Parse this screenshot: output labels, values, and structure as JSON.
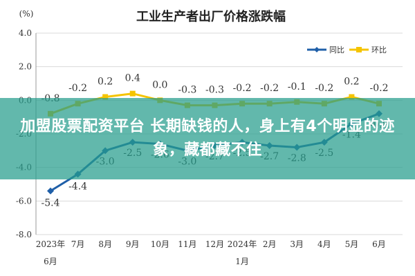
{
  "colors": {
    "yoy": "#1f5fa8",
    "mom": "#f5c400",
    "grid": "#d9d9d9",
    "banner": "#269c8c"
  },
  "banner": {
    "text": "加盟股票配资平台 长期缺钱的人，身上有4个明显的迹象，藏都藏不住"
  },
  "chart_data": {
    "type": "line",
    "title": "工业生产者出厂价格涨跌幅",
    "ylabel": "(%)",
    "xlabel": "",
    "ylim": [
      -8.0,
      4.0
    ],
    "yticks": [
      "4.0",
      "2.0",
      "0.0",
      "-2.0",
      "-4.0",
      "-6.0",
      "-8.0"
    ],
    "ytick_values": [
      4,
      2,
      0,
      -2,
      -4,
      -6,
      -8
    ],
    "grid": true,
    "legend_position": "top-right",
    "categories": [
      {
        "line1": "2023年",
        "line2": "6月"
      },
      {
        "line1": "7月",
        "line2": ""
      },
      {
        "line1": "8月",
        "line2": ""
      },
      {
        "line1": "9月",
        "line2": ""
      },
      {
        "line1": "10月",
        "line2": ""
      },
      {
        "line1": "11月",
        "line2": ""
      },
      {
        "line1": "12月",
        "line2": ""
      },
      {
        "line1": "2024年",
        "line2": "1月"
      },
      {
        "line1": "2月",
        "line2": ""
      },
      {
        "line1": "3月",
        "line2": ""
      },
      {
        "line1": "4月",
        "line2": ""
      },
      {
        "line1": "5月",
        "line2": ""
      },
      {
        "line1": "6月",
        "line2": ""
      }
    ],
    "series": [
      {
        "name": "同比",
        "key": "yoy",
        "values": [
          -5.4,
          -4.4,
          -3.0,
          -2.5,
          -2.6,
          -3.0,
          -2.7,
          -2.5,
          -2.7,
          -2.8,
          -2.5,
          -1.4,
          -0.8
        ],
        "labels": [
          "-5.4",
          "-4.4",
          "-3.0",
          "-2.5",
          "-2.6",
          "-3.0",
          "-2.7",
          "-2.5",
          "-2.7",
          "-2.8",
          "-2.5",
          "-1.4",
          "-0.8"
        ]
      },
      {
        "name": "环比",
        "key": "mom",
        "values": [
          -0.8,
          -0.2,
          0.2,
          0.4,
          0.0,
          -0.3,
          -0.3,
          -0.2,
          -0.2,
          -0.1,
          -0.2,
          0.2,
          -0.2
        ],
        "labels": [
          "-0.8",
          "-0.2",
          "0.2",
          "0.4",
          "0.0",
          "-0.3",
          "-0.3",
          "-0.2",
          "-0.2",
          "-0.1",
          "-0.2",
          "0.2",
          "-0.2"
        ]
      }
    ]
  }
}
